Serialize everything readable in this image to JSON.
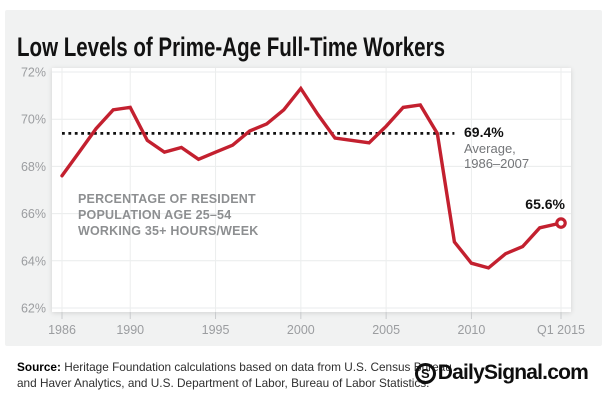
{
  "title": "Low Levels of Prime-Age Full-Time Workers",
  "chart_data": {
    "type": "line",
    "title": "Low Levels of Prime-Age Full-Time Workers",
    "xlim": [
      1986,
      2015.25
    ],
    "ylim": [
      62,
      72
    ],
    "grid": true,
    "yticks": [
      62,
      64,
      66,
      68,
      70,
      72
    ],
    "ytick_labels": [
      "62%",
      "64%",
      "66%",
      "68%",
      "70%",
      "72%"
    ],
    "xticks": [
      1986,
      1990,
      1995,
      2000,
      2005,
      2010,
      2015.25
    ],
    "xtick_labels": [
      "1986",
      "1990",
      "1995",
      "2000",
      "2005",
      "2010",
      "Q1 2015"
    ],
    "series": [
      {
        "name": "Percentage of resident population age 25–54 working 35+ hours/week",
        "color": "#c3202f",
        "x": [
          1986,
          1987,
          1988,
          1989,
          1990,
          1991,
          1992,
          1993,
          1994,
          1995,
          1996,
          1997,
          1998,
          1999,
          2000,
          2001,
          2002,
          2003,
          2004,
          2005,
          2006,
          2007,
          2008,
          2009,
          2010,
          2011,
          2012,
          2013,
          2014,
          2015.25
        ],
        "values": [
          67.6,
          68.6,
          69.6,
          70.4,
          70.5,
          69.1,
          68.6,
          68.8,
          68.3,
          68.6,
          68.9,
          69.5,
          69.8,
          70.4,
          71.3,
          70.2,
          69.2,
          69.1,
          69.0,
          69.7,
          70.5,
          70.6,
          69.4,
          64.8,
          63.9,
          63.7,
          64.3,
          64.6,
          65.4,
          65.6
        ]
      }
    ],
    "average_line": {
      "value": 69.4,
      "x_start": 1986,
      "x_end": 2009,
      "color": "#111111",
      "label": "69.4%",
      "sublabel": "Average,",
      "sublabel2": "1986–2007"
    },
    "end_label": "65.6%"
  },
  "note": {
    "line1": "PERCENTAGE OF RESIDENT",
    "line2": "POPULATION AGE 25–54",
    "line3": "WORKING 35+ HOURS/WEEK"
  },
  "footer": {
    "source_label": "Source:",
    "source_line1": "Heritage Foundation calculations based on data from U.S. Census Bureau",
    "source_line2": "and Haver Analytics, and U.S. Department of Labor, Bureau of Labor Statistics.",
    "logo_s": "S",
    "logo_text": "DailySignal.com"
  },
  "colors": {
    "card_background": "#f1f2f2",
    "plot_background": "#ffffff",
    "line_red": "#c3202f",
    "grid": "#e9ebec",
    "axis_text": "#9b9da0"
  }
}
